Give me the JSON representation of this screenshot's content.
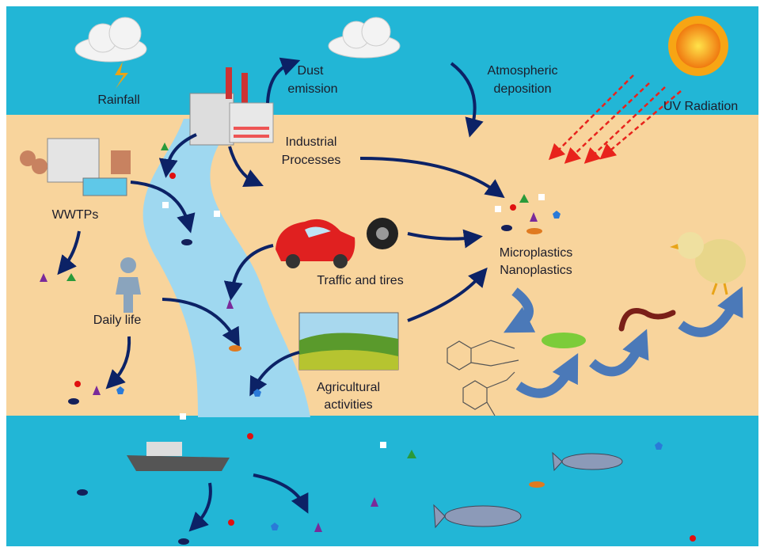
{
  "labels": {
    "rainfall": "Rainfall",
    "dust_emission": [
      "Dust",
      "emission"
    ],
    "atmospheric_deposition": [
      "Atmospheric",
      "deposition"
    ],
    "uv_radiation": "UV Radiation",
    "industrial_processes": [
      "Industrial",
      "Processes"
    ],
    "wwtps": "WWTPs",
    "traffic_and_tires": "Traffic and tires",
    "micro_nano_plastics": [
      "Microplastics",
      "Nanoplastics"
    ],
    "daily_life": "Daily life",
    "agricultural_activities": [
      "Agricultural",
      "activities"
    ]
  }
}
